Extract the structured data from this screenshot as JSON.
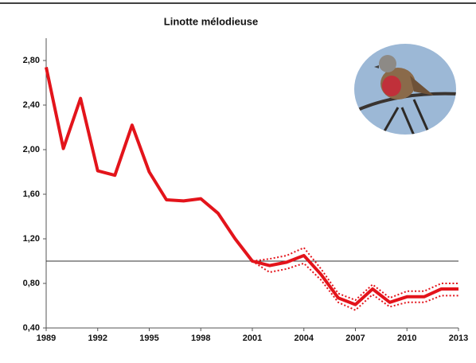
{
  "chart_data": {
    "type": "line",
    "title": "Linotte mélodieuse",
    "x": [
      1989,
      1990,
      1991,
      1992,
      1993,
      1994,
      1995,
      1996,
      1997,
      1998,
      1999,
      2000,
      2001,
      2002,
      2003,
      2004,
      2005,
      2006,
      2007,
      2008,
      2009,
      2010,
      2011,
      2012,
      2013
    ],
    "series": [
      {
        "color": "#e3141b",
        "style": "solid",
        "values": [
          2.74,
          2.01,
          2.46,
          1.81,
          1.77,
          2.22,
          1.8,
          1.55,
          1.54,
          1.56,
          1.43,
          1.2,
          1.0,
          0.96,
          0.99,
          1.05,
          0.88,
          0.67,
          0.61,
          0.75,
          0.63,
          0.68,
          0.68,
          0.75,
          0.75
        ]
      },
      {
        "color": "#e3141b",
        "style": "dotted",
        "values": [
          null,
          null,
          null,
          null,
          null,
          null,
          null,
          null,
          null,
          null,
          null,
          null,
          1.0,
          1.02,
          1.05,
          1.12,
          0.93,
          0.71,
          0.65,
          0.79,
          0.67,
          0.73,
          0.73,
          0.8,
          0.8
        ]
      },
      {
        "color": "#e3141b",
        "style": "dotted",
        "values": [
          null,
          null,
          null,
          null,
          null,
          null,
          null,
          null,
          null,
          null,
          null,
          null,
          1.0,
          0.9,
          0.93,
          0.98,
          0.83,
          0.63,
          0.56,
          0.7,
          0.59,
          0.63,
          0.63,
          0.69,
          0.69
        ]
      }
    ],
    "reference_line": 1.0,
    "xlim": [
      1989,
      2013
    ],
    "xticks": [
      1989,
      1992,
      1995,
      1998,
      2001,
      2004,
      2007,
      2010,
      2013
    ],
    "ylim": [
      0.4,
      3.0
    ],
    "yticks": [
      {
        "value": 0.4,
        "label": "0,40"
      },
      {
        "value": 0.8,
        "label": "0,80"
      },
      {
        "value": 1.2,
        "label": "1,20"
      },
      {
        "value": 1.6,
        "label": "1,60"
      },
      {
        "value": 2.0,
        "label": "2,00"
      },
      {
        "value": 2.4,
        "label": "2,40"
      },
      {
        "value": 2.8,
        "label": "2,80"
      }
    ]
  }
}
